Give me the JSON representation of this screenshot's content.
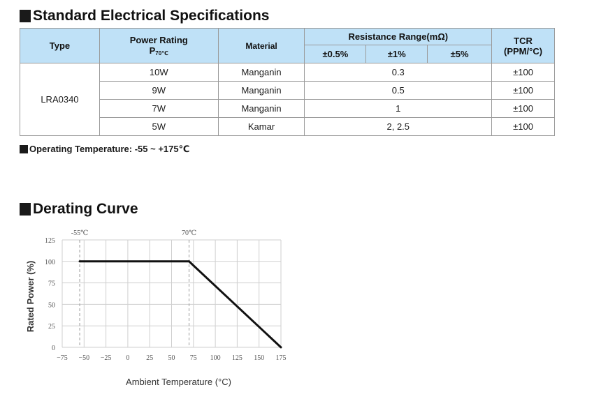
{
  "spec_section": {
    "title": "Standard Electrical Specifications",
    "headers": {
      "type": "Type",
      "power_rating": "Power Rating",
      "power_sub_p": "P",
      "power_sub_70": "70℃",
      "material": "Material",
      "resistance_range": "Resistance Range(mΩ)",
      "tol_05": "±0.5%",
      "tol_1": "±1%",
      "tol_5": "±5%",
      "tcr": "TCR",
      "tcr_unit": "(PPM/°C)"
    },
    "type_value": "LRA0340",
    "rows": [
      {
        "power": "10W",
        "material": "Manganin",
        "resistance": "0.3",
        "tcr": "±100"
      },
      {
        "power": "9W",
        "material": "Manganin",
        "resistance": "0.5",
        "tcr": "±100"
      },
      {
        "power": "7W",
        "material": "Manganin",
        "resistance": "1",
        "tcr": "±100"
      },
      {
        "power": "5W",
        "material": "Kamar",
        "resistance": "2, 2.5",
        "tcr": "±100"
      }
    ],
    "operating_temp": "Operating Temperature: -55 ~ +175℃"
  },
  "derating_section": {
    "title": "Derating Curve"
  },
  "chart_data": {
    "type": "line",
    "xlabel": "Ambient Temperature (°C)",
    "ylabel": "Rated Power (%)",
    "xlim": [
      -75,
      175
    ],
    "ylim": [
      0,
      125
    ],
    "x_ticks": [
      -75,
      -50,
      -25,
      0,
      25,
      50,
      75,
      100,
      125,
      150,
      175
    ],
    "y_ticks": [
      0,
      25,
      50,
      75,
      100,
      125
    ],
    "x_tick_labels": [
      "−75",
      "−50",
      "−25",
      "0",
      "25",
      "50",
      "75",
      "100",
      "125",
      "150",
      "175"
    ],
    "y_tick_labels": [
      "0",
      "25",
      "50",
      "75",
      "100",
      "125"
    ],
    "grid": true,
    "annotations": [
      {
        "text": "-55℃",
        "x": -55
      },
      {
        "text": "70℃",
        "x": 70
      }
    ],
    "series": [
      {
        "x": [
          -55,
          70,
          175
        ],
        "y": [
          100,
          100,
          0
        ]
      }
    ],
    "colors": {
      "line": "#111111",
      "grid": "#cfcfcf"
    }
  }
}
